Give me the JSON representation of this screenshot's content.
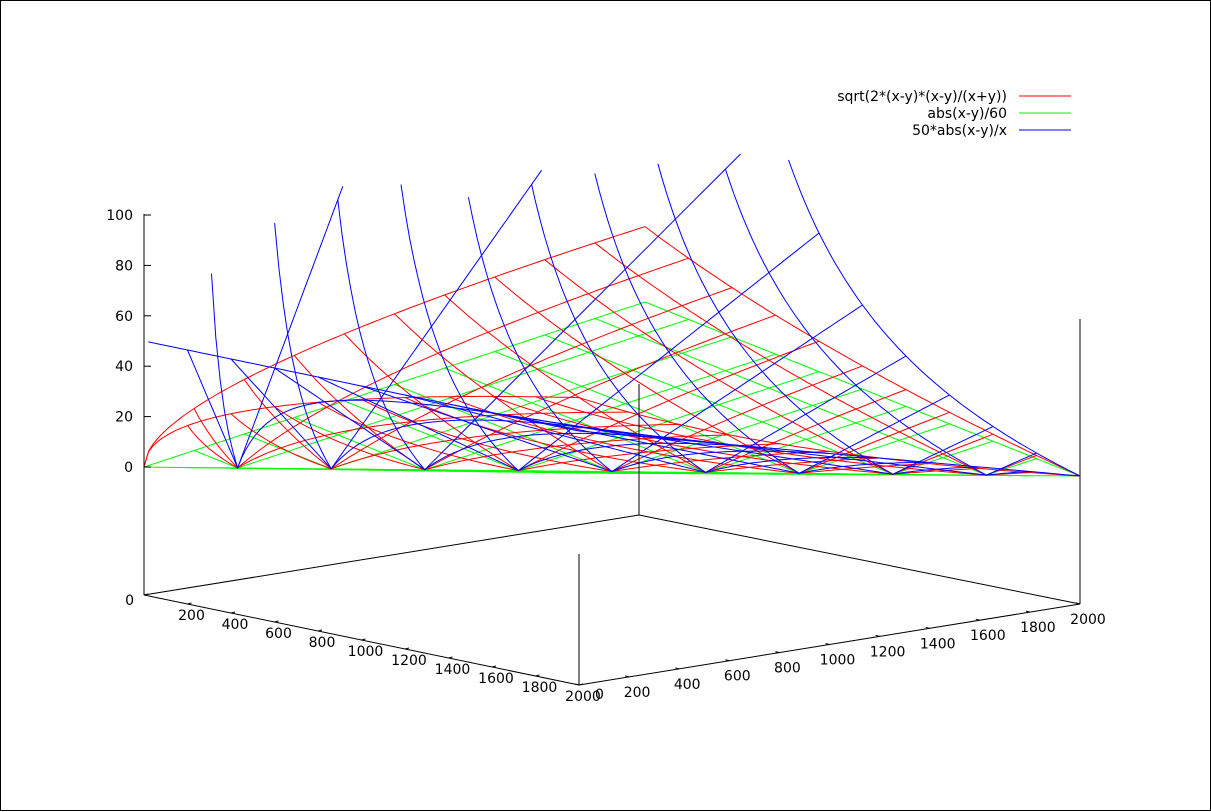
{
  "chart_data": {
    "type": "surface3d",
    "x_ticks": [
      "0",
      "200",
      "400",
      "600",
      "800",
      "1000",
      "1200",
      "1400",
      "1600",
      "1800",
      "2000"
    ],
    "y_ticks": [
      "0",
      "200",
      "400",
      "600",
      "800",
      "1000",
      "1200",
      "1400",
      "1600",
      "1800",
      "2000"
    ],
    "z_ticks": [
      "0",
      "20",
      "40",
      "60",
      "80",
      "100"
    ],
    "xrange": [
      0,
      2000
    ],
    "yrange": [
      0,
      2000
    ],
    "zrange": [
      0,
      100
    ],
    "grid_samples": 11,
    "legend_position": "top-right",
    "series": [
      {
        "name": "sqrt(2*(x-y)*(x-y)/(x+y))",
        "color": "#ff0000"
      },
      {
        "name": "abs(x-y)/60",
        "color": "#00ff00"
      },
      {
        "name": "50*abs(x-y)/x",
        "color": "#0000ff"
      }
    ]
  }
}
